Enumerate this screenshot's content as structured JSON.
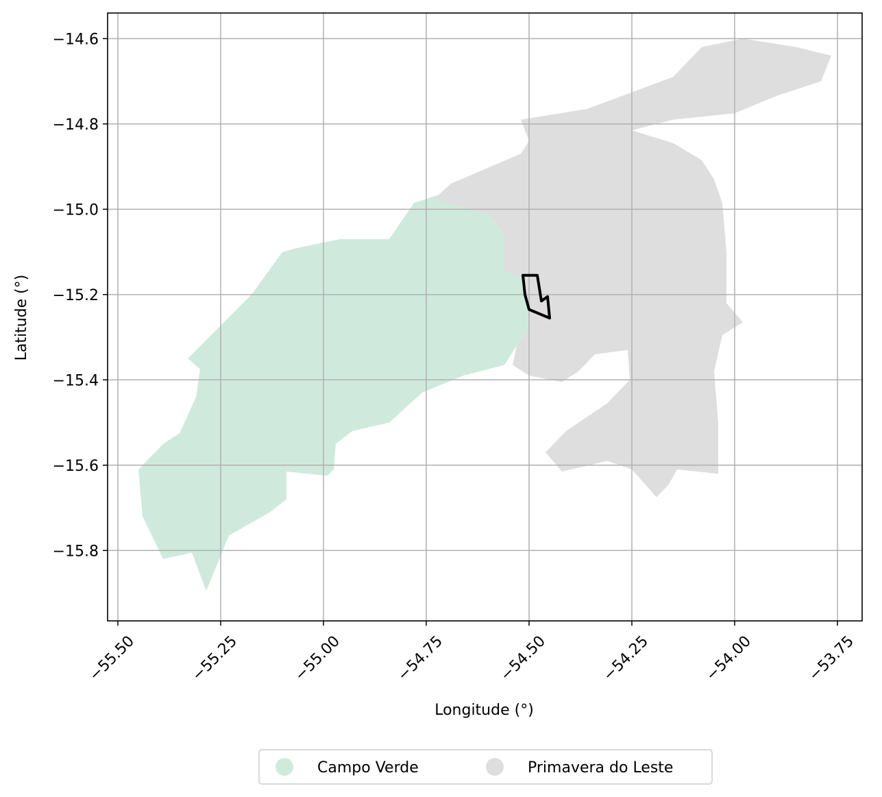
{
  "chart_data": {
    "type": "map",
    "xlabel": "Longitude (°)",
    "ylabel": "Latitude (°)",
    "xlim": [
      -55.525,
      -53.69
    ],
    "ylim": [
      -15.965,
      -14.54
    ],
    "x_ticks": [
      -55.5,
      -55.25,
      -55.0,
      -54.75,
      -54.5,
      -54.25,
      -54.0,
      -53.75
    ],
    "x_tick_labels": [
      "−55.50",
      "−55.25",
      "−55.00",
      "−54.75",
      "−54.50",
      "−54.25",
      "−54.00",
      "−53.75"
    ],
    "y_ticks": [
      -14.6,
      -14.8,
      -15.0,
      -15.2,
      -15.4,
      -15.6,
      -15.8
    ],
    "y_tick_labels": [
      "−14.6",
      "−14.8",
      "−15.0",
      "−15.2",
      "−15.4",
      "−15.6",
      "−15.8"
    ],
    "grid": true,
    "legend_position": "bottom-center",
    "series": [
      {
        "name": "Campo Verde",
        "color": "#cfeadd",
        "coordinates": [
          [
            -55.33,
            -15.35
          ],
          [
            -55.175,
            -15.2
          ],
          [
            -55.1,
            -15.1
          ],
          [
            -55.06,
            -15.09
          ],
          [
            -54.96,
            -15.07
          ],
          [
            -54.84,
            -15.07
          ],
          [
            -54.78,
            -14.985
          ],
          [
            -54.7,
            -14.96
          ],
          [
            -54.64,
            -14.975
          ],
          [
            -54.6,
            -15.01
          ],
          [
            -54.56,
            -15.06
          ],
          [
            -54.56,
            -15.145
          ],
          [
            -54.52,
            -15.16
          ],
          [
            -54.51,
            -15.2
          ],
          [
            -54.5,
            -15.24
          ],
          [
            -54.5,
            -15.28
          ],
          [
            -54.53,
            -15.32
          ],
          [
            -54.56,
            -15.365
          ],
          [
            -54.66,
            -15.39
          ],
          [
            -54.76,
            -15.43
          ],
          [
            -54.84,
            -15.5
          ],
          [
            -54.93,
            -15.52
          ],
          [
            -54.97,
            -15.55
          ],
          [
            -54.975,
            -15.61
          ],
          [
            -54.99,
            -15.625
          ],
          [
            -55.09,
            -15.615
          ],
          [
            -55.09,
            -15.68
          ],
          [
            -55.13,
            -15.71
          ],
          [
            -55.23,
            -15.765
          ],
          [
            -55.285,
            -15.895
          ],
          [
            -55.32,
            -15.805
          ],
          [
            -55.39,
            -15.82
          ],
          [
            -55.44,
            -15.72
          ],
          [
            -55.45,
            -15.61
          ],
          [
            -55.39,
            -15.55
          ],
          [
            -55.35,
            -15.525
          ],
          [
            -55.31,
            -15.44
          ],
          [
            -55.3,
            -15.375
          ]
        ]
      },
      {
        "name": "Primavera do Leste",
        "color": "#dedede",
        "coordinates": [
          [
            -54.73,
            -14.975
          ],
          [
            -54.69,
            -14.94
          ],
          [
            -54.52,
            -14.87
          ],
          [
            -54.5,
            -14.84
          ],
          [
            -54.52,
            -14.79
          ],
          [
            -54.36,
            -14.765
          ],
          [
            -54.15,
            -14.69
          ],
          [
            -54.08,
            -14.62
          ],
          [
            -53.98,
            -14.6
          ],
          [
            -53.85,
            -14.62
          ],
          [
            -53.765,
            -14.64
          ],
          [
            -53.79,
            -14.7
          ],
          [
            -53.9,
            -14.735
          ],
          [
            -54.0,
            -14.775
          ],
          [
            -54.15,
            -14.79
          ],
          [
            -54.25,
            -14.815
          ],
          [
            -54.15,
            -14.845
          ],
          [
            -54.08,
            -14.885
          ],
          [
            -54.05,
            -14.93
          ],
          [
            -54.03,
            -14.985
          ],
          [
            -54.02,
            -15.1
          ],
          [
            -54.02,
            -15.22
          ],
          [
            -53.98,
            -15.265
          ],
          [
            -54.03,
            -15.295
          ],
          [
            -54.05,
            -15.38
          ],
          [
            -54.04,
            -15.5
          ],
          [
            -54.04,
            -15.62
          ],
          [
            -54.14,
            -15.61
          ],
          [
            -54.16,
            -15.645
          ],
          [
            -54.19,
            -15.675
          ],
          [
            -54.25,
            -15.61
          ],
          [
            -54.28,
            -15.6
          ],
          [
            -54.31,
            -15.59
          ],
          [
            -54.42,
            -15.615
          ],
          [
            -54.46,
            -15.57
          ],
          [
            -54.41,
            -15.52
          ],
          [
            -54.31,
            -15.455
          ],
          [
            -54.255,
            -15.4
          ],
          [
            -54.26,
            -15.33
          ],
          [
            -54.34,
            -15.34
          ],
          [
            -54.38,
            -15.38
          ],
          [
            -54.42,
            -15.405
          ],
          [
            -54.5,
            -15.39
          ],
          [
            -54.54,
            -15.365
          ],
          [
            -54.53,
            -15.32
          ],
          [
            -54.5,
            -15.28
          ],
          [
            -54.5,
            -15.24
          ],
          [
            -54.51,
            -15.2
          ],
          [
            -54.52,
            -15.16
          ],
          [
            -54.56,
            -15.145
          ],
          [
            -54.56,
            -15.06
          ],
          [
            -54.6,
            -15.01
          ]
        ]
      }
    ],
    "highlight_outline": {
      "color": "#000000",
      "coordinates": [
        [
          -54.515,
          -15.155
        ],
        [
          -54.48,
          -15.155
        ],
        [
          -54.47,
          -15.215
        ],
        [
          -54.455,
          -15.205
        ],
        [
          -54.45,
          -15.255
        ],
        [
          -54.5,
          -15.235
        ],
        [
          -54.51,
          -15.2
        ]
      ]
    }
  }
}
